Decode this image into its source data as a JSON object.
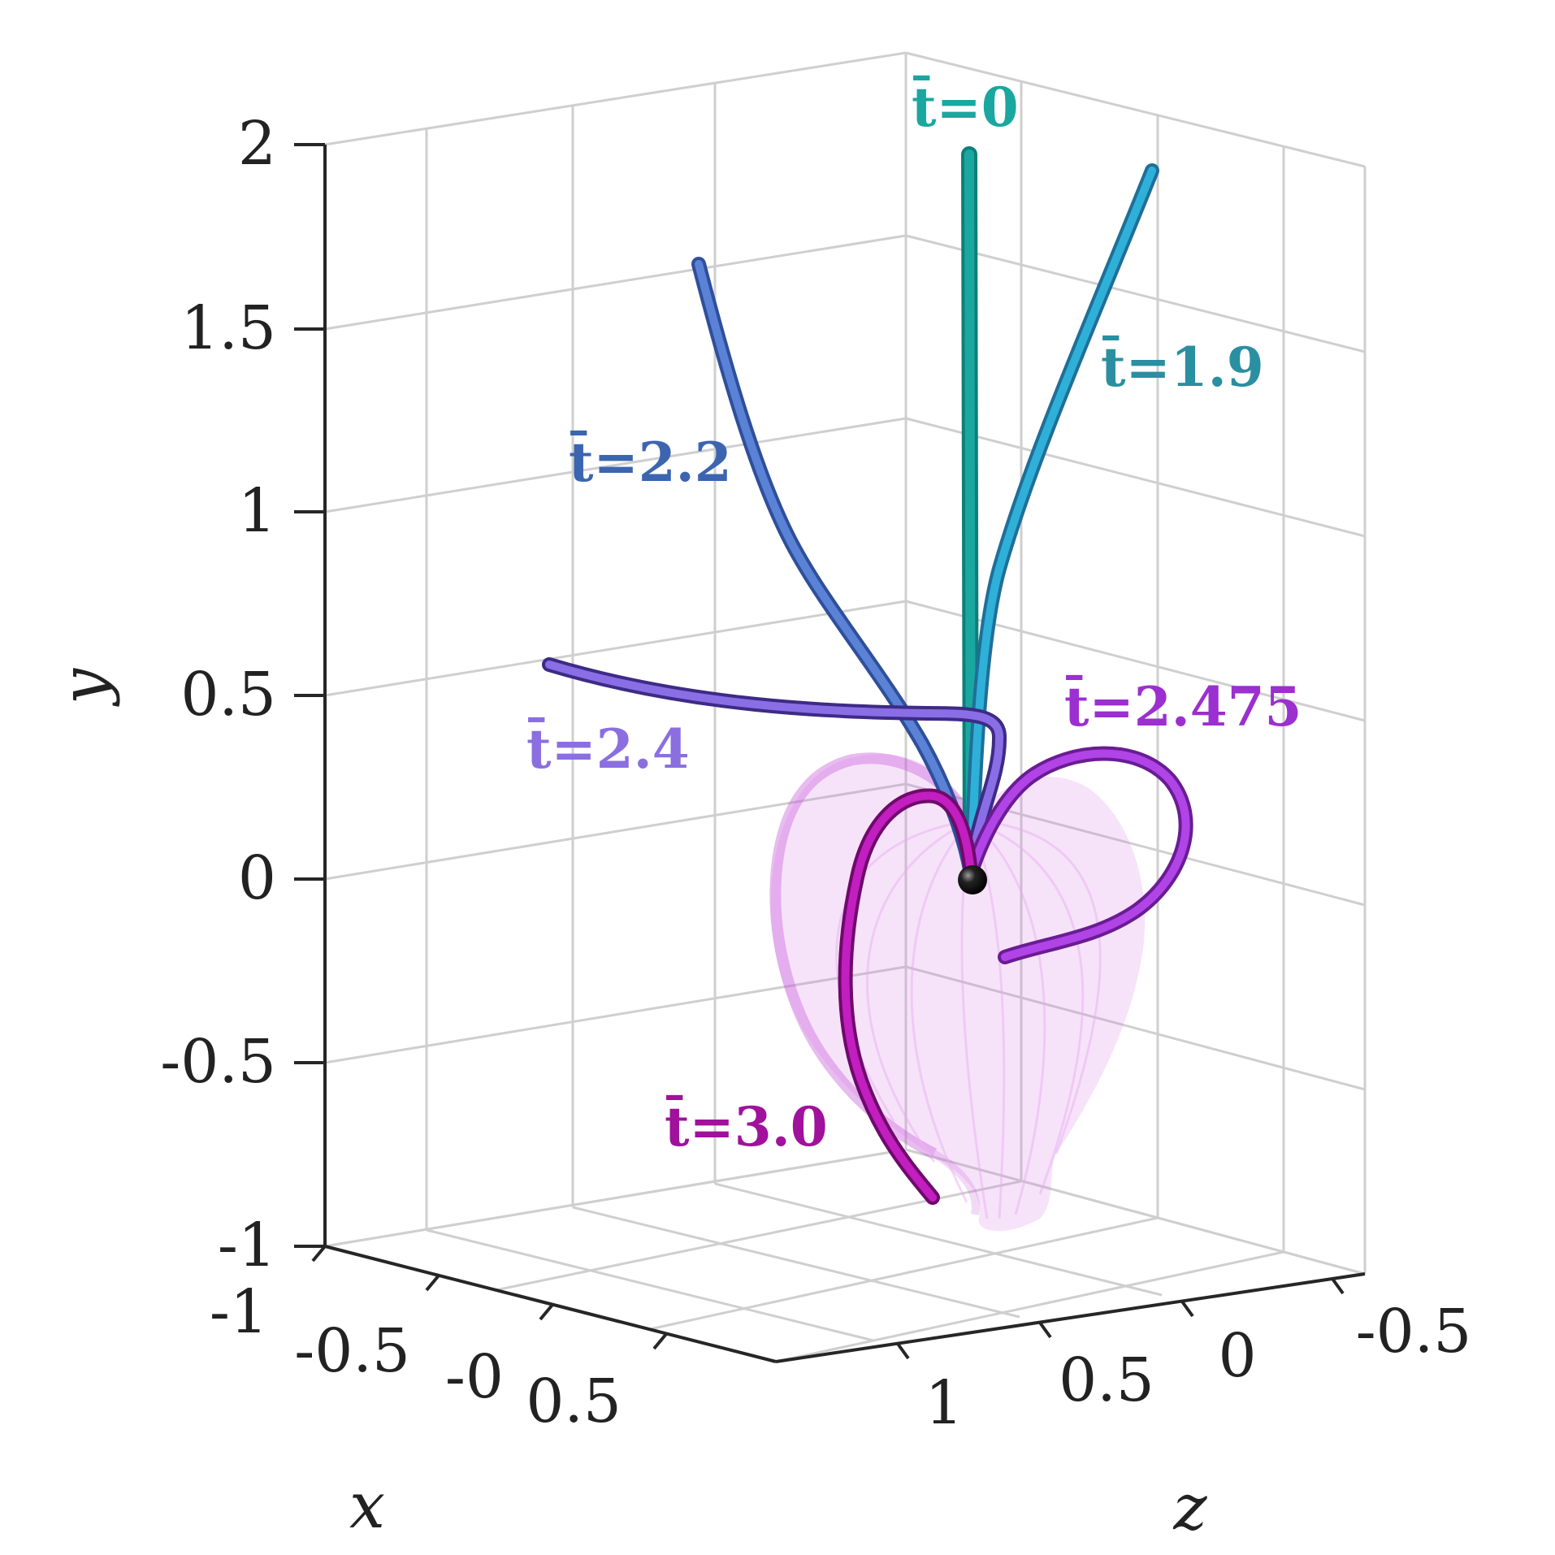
{
  "chart_data": {
    "type": "line3d",
    "x_axis": {
      "label": "x",
      "ticks": [
        "-1",
        "-0.5",
        "-0",
        "0.5"
      ]
    },
    "y_axis": {
      "label": "y",
      "ticks": [
        "-1",
        "-0.5",
        "0",
        "0.5",
        "1",
        "1.5",
        "2"
      ],
      "range": [
        -1,
        2
      ]
    },
    "z_axis": {
      "label": "z",
      "ticks": [
        "1",
        "0.5",
        "0",
        "-0.5"
      ]
    },
    "grid": true,
    "anchor_point": {
      "x": 0,
      "y": 0,
      "z": 0,
      "color": "#000000"
    },
    "series": [
      {
        "name": "t̄=0",
        "color": "#1aa7a0"
      },
      {
        "name": "t̄=1.9",
        "color": "#2d9fc7"
      },
      {
        "name": "t̄=2.2",
        "color": "#4a6fbf"
      },
      {
        "name": "t̄=2.4",
        "color": "#7d5fd6"
      },
      {
        "name": "t̄=2.475",
        "color": "#9b2fcf"
      },
      {
        "name": "t̄=3.0",
        "color": "#a0119c"
      }
    ],
    "envelope_color": "#d36be0"
  }
}
